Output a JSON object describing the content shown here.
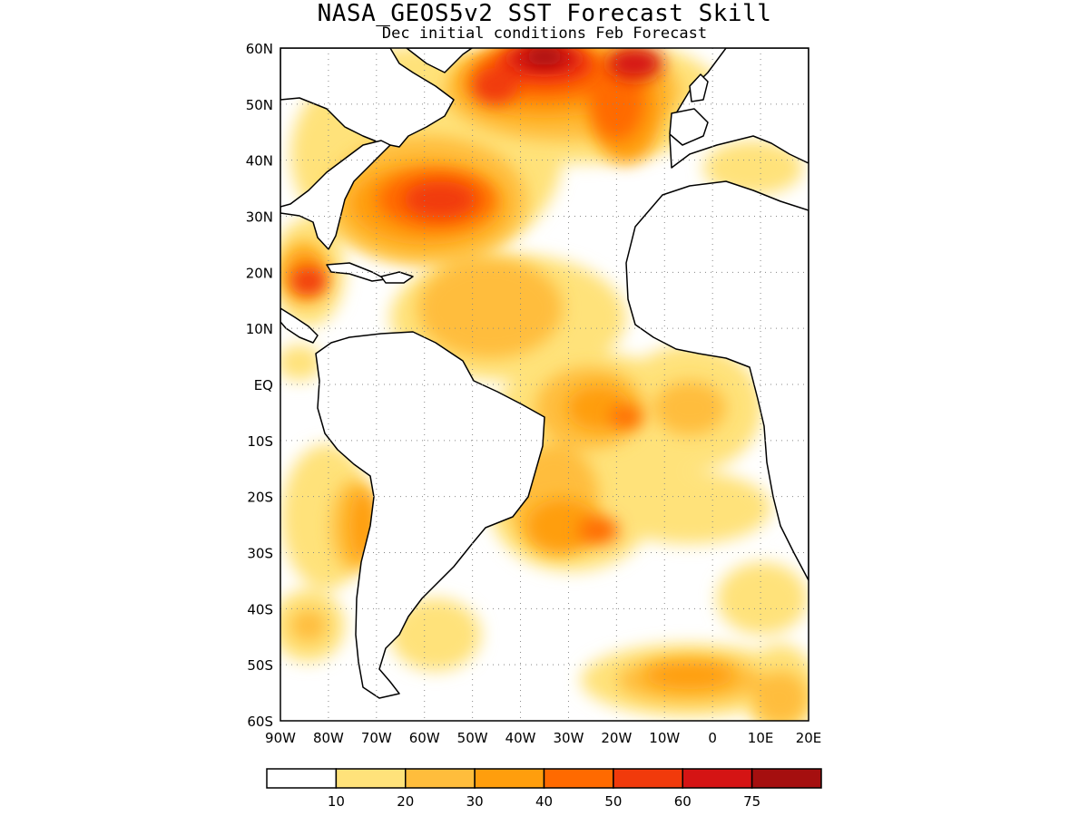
{
  "title": "NASA_GEOS5v2 SST Forecast Skill",
  "subtitle": "Dec initial conditions  Feb Forecast",
  "map": {
    "lon_range": [
      -90,
      20
    ],
    "lat_range": [
      -60,
      60
    ],
    "lat_labels": [
      "60N",
      "50N",
      "40N",
      "30N",
      "20N",
      "10N",
      "EQ",
      "10S",
      "20S",
      "30S",
      "40S",
      "50S",
      "60S"
    ],
    "lon_labels": [
      "90W",
      "80W",
      "70W",
      "60W",
      "50W",
      "40W",
      "30W",
      "20W",
      "10W",
      "0",
      "10E",
      "20E"
    ],
    "grid": "dotted"
  },
  "colorbar": {
    "colors": [
      "#ffffff",
      "#ffe27a",
      "#ffbd3c",
      "#ff9e0d",
      "#ff6a00",
      "#f13a0b",
      "#d51414",
      "#a50f0f"
    ],
    "labels": [
      "10",
      "20",
      "30",
      "40",
      "50",
      "60",
      "75"
    ]
  }
}
